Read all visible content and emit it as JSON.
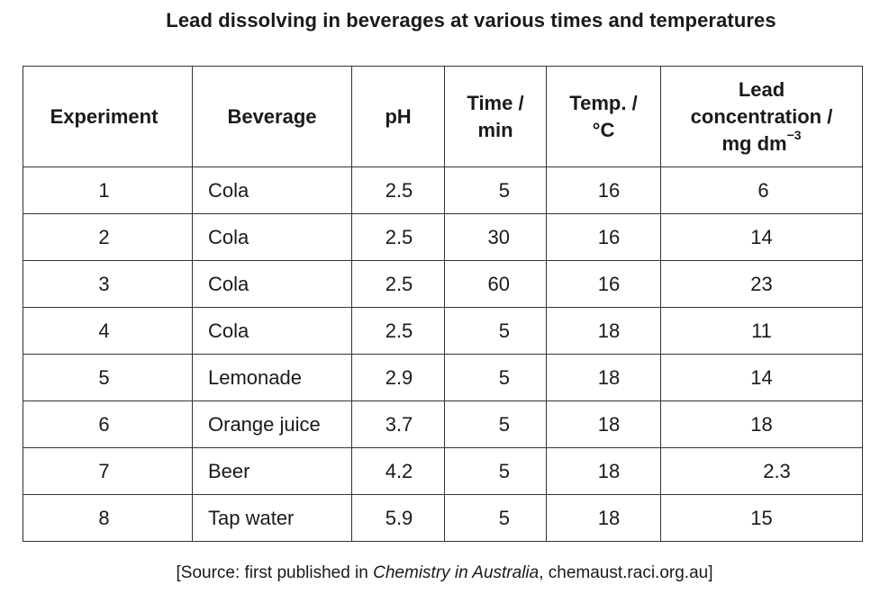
{
  "title": "Lead dissolving in beverages at various times and temperatures",
  "table": {
    "headers": {
      "experiment": "Experiment",
      "beverage": "Beverage",
      "ph": "pH",
      "time_line1": "Time /",
      "time_line2": "min",
      "temp_line1": "Temp. /",
      "temp_line2": "°C",
      "lead_line1": "Lead",
      "lead_line2": "concentration /",
      "lead_line3": "mg dm",
      "lead_sup": "−3"
    },
    "rows": [
      {
        "experiment": "1",
        "beverage": "Cola",
        "ph": "2.5",
        "time": "5",
        "temp": "16",
        "lead": "6"
      },
      {
        "experiment": "2",
        "beverage": "Cola",
        "ph": "2.5",
        "time": "30",
        "temp": "16",
        "lead": "14"
      },
      {
        "experiment": "3",
        "beverage": "Cola",
        "ph": "2.5",
        "time": "60",
        "temp": "16",
        "lead": "23"
      },
      {
        "experiment": "4",
        "beverage": "Cola",
        "ph": "2.5",
        "time": "5",
        "temp": "18",
        "lead": "11"
      },
      {
        "experiment": "5",
        "beverage": "Lemonade",
        "ph": "2.9",
        "time": "5",
        "temp": "18",
        "lead": "14"
      },
      {
        "experiment": "6",
        "beverage": "Orange juice",
        "ph": "3.7",
        "time": "5",
        "temp": "18",
        "lead": "18"
      },
      {
        "experiment": "7",
        "beverage": "Beer",
        "ph": "4.2",
        "time": "5",
        "temp": "18",
        "lead": "2.3"
      },
      {
        "experiment": "8",
        "beverage": "Tap water",
        "ph": "5.9",
        "time": "5",
        "temp": "18",
        "lead": "15"
      }
    ]
  },
  "source": {
    "prefix": "[Source: first published in ",
    "publication": "Chemistry in Australia",
    "suffix": ", chemaust.raci.org.au]"
  }
}
